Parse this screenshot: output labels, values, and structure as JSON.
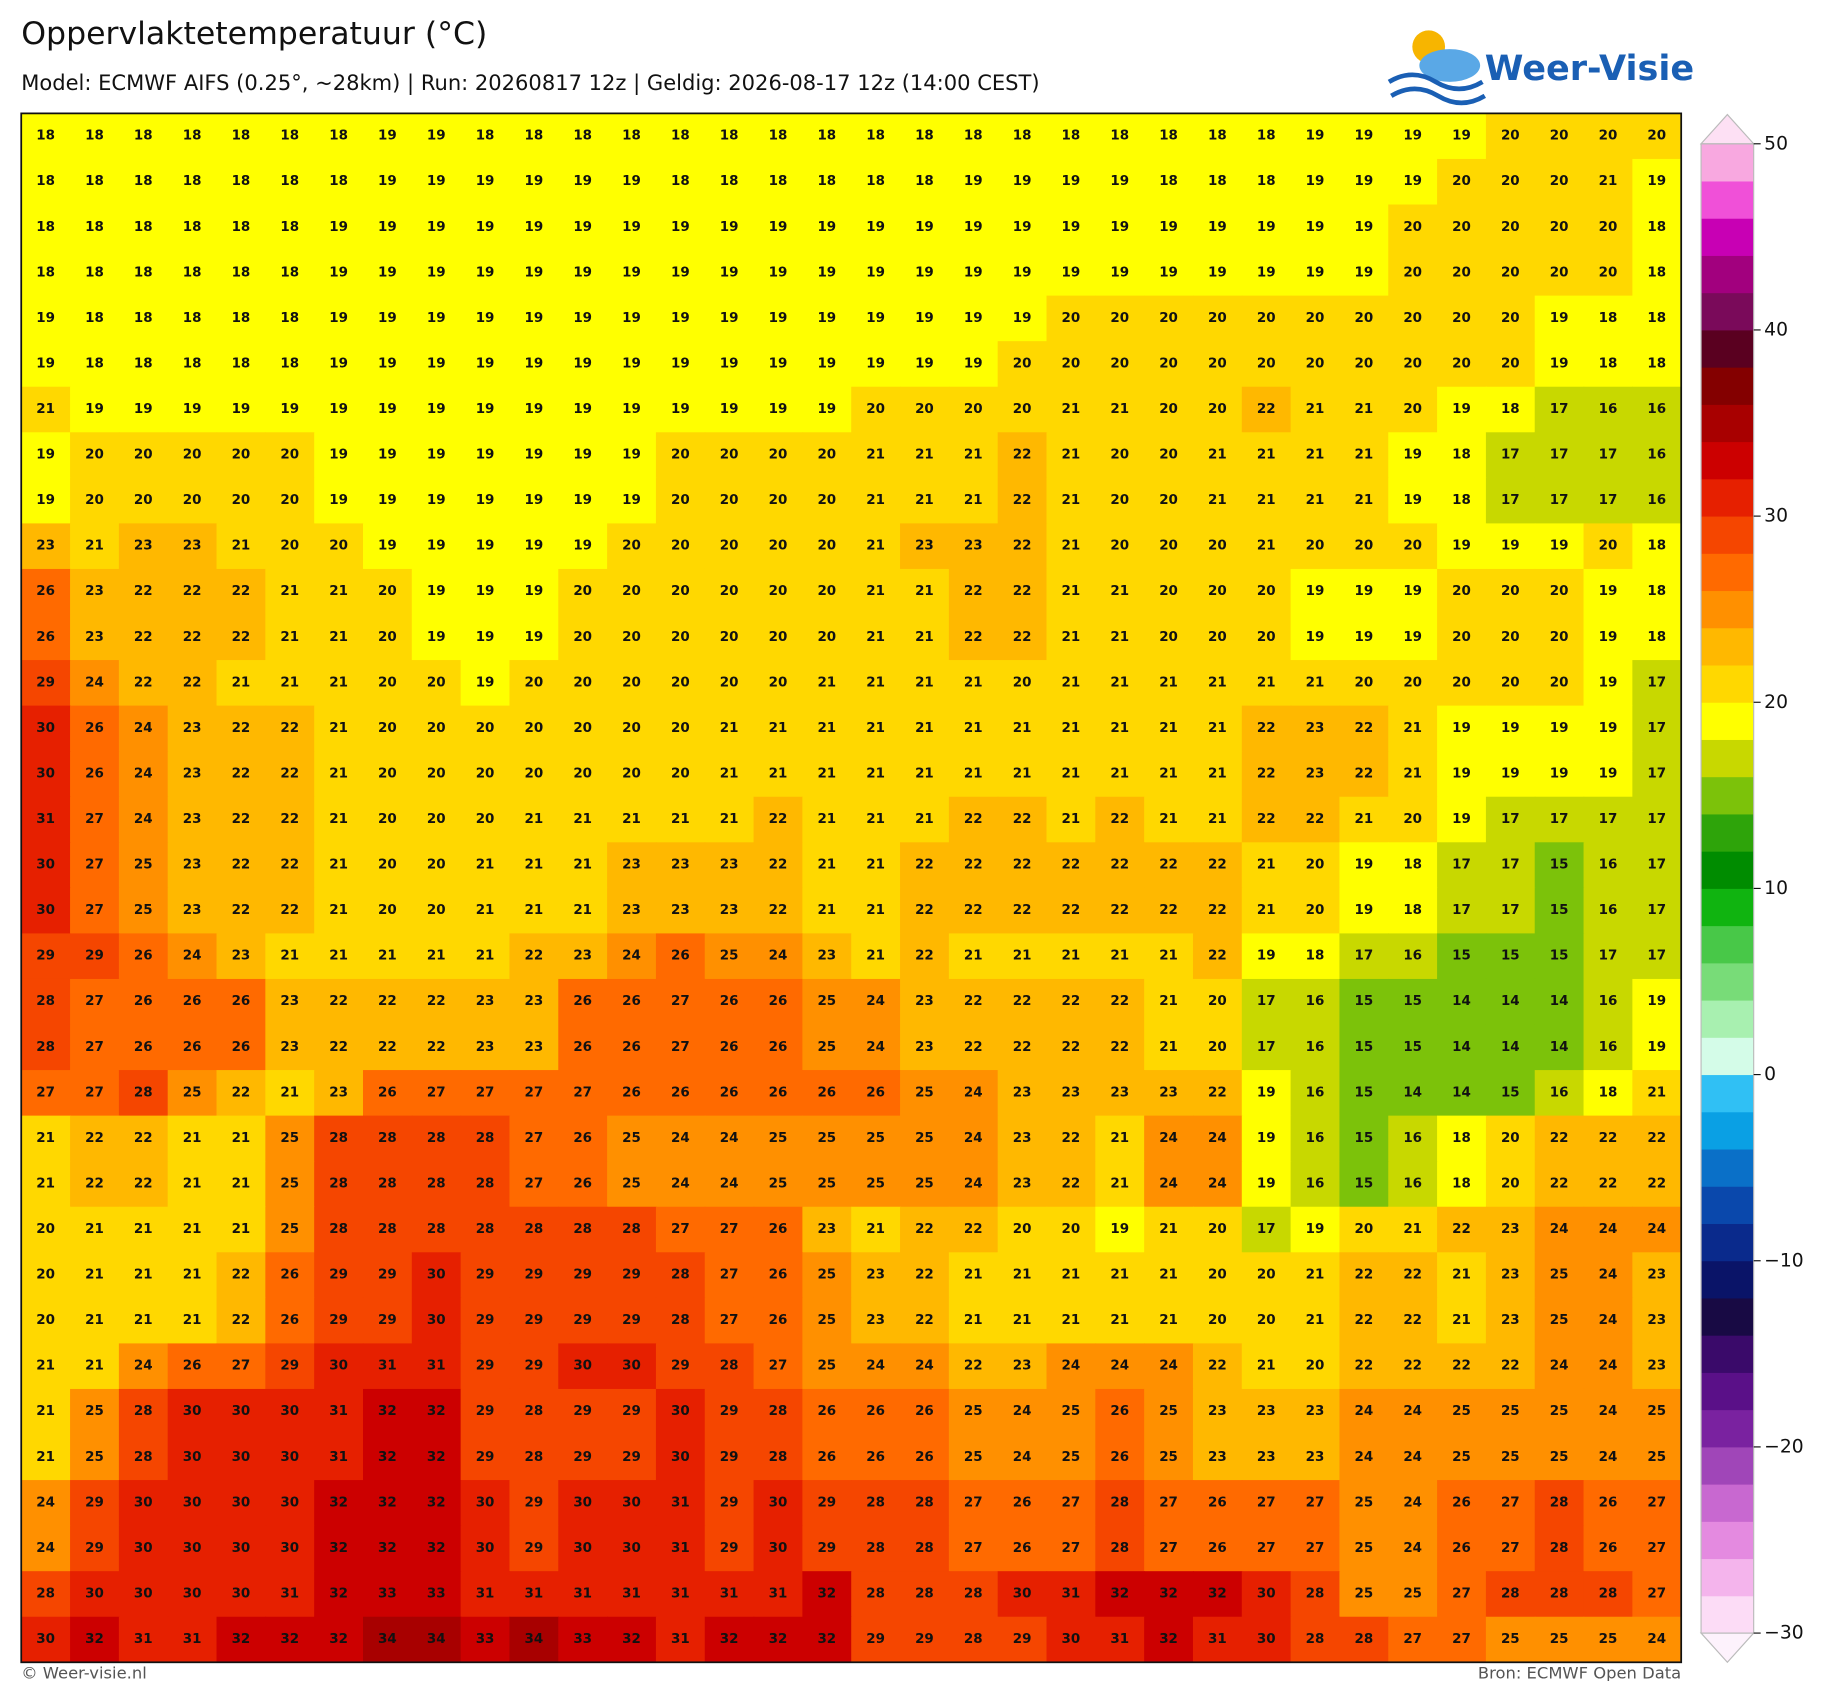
{
  "map": {
    "title": "Oppervlaktetemperatuur (°C)",
    "subtitle": "Model: ECMWF AIFS (0.25°, ~28km)  |  Run: 20260817 12z  |  Geldig: 2026-08-17 12z (14:00 CEST)",
    "logo": "Weer-Visie",
    "footer_left": "© Weer-visie.nl",
    "footer_right": "Bron: ECMWF Open Data",
    "grid": [
      [
        18,
        18,
        18,
        18,
        18,
        18,
        18,
        19,
        19,
        18,
        18,
        18,
        18,
        18,
        18,
        18,
        18,
        18,
        18,
        18,
        18,
        18,
        18,
        18,
        18,
        18,
        19,
        19,
        19,
        19,
        20,
        20,
        20,
        20
      ],
      [
        18,
        18,
        18,
        18,
        18,
        18,
        18,
        19,
        19,
        19,
        19,
        19,
        19,
        18,
        18,
        18,
        18,
        18,
        18,
        19,
        19,
        19,
        19,
        18,
        18,
        18,
        19,
        19,
        19,
        20,
        20,
        20,
        21,
        19
      ],
      [
        18,
        18,
        18,
        18,
        18,
        18,
        19,
        19,
        19,
        19,
        19,
        19,
        19,
        19,
        19,
        19,
        19,
        19,
        19,
        19,
        19,
        19,
        19,
        19,
        19,
        19,
        19,
        19,
        20,
        20,
        20,
        20,
        20,
        18
      ],
      [
        18,
        18,
        18,
        18,
        18,
        18,
        19,
        19,
        19,
        19,
        19,
        19,
        19,
        19,
        19,
        19,
        19,
        19,
        19,
        19,
        19,
        19,
        19,
        19,
        19,
        19,
        19,
        19,
        20,
        20,
        20,
        20,
        20,
        18
      ],
      [
        19,
        18,
        18,
        18,
        18,
        18,
        19,
        19,
        19,
        19,
        19,
        19,
        19,
        19,
        19,
        19,
        19,
        19,
        19,
        19,
        19,
        20,
        20,
        20,
        20,
        20,
        20,
        20,
        20,
        20,
        20,
        19,
        18,
        18
      ],
      [
        19,
        18,
        18,
        18,
        18,
        18,
        19,
        19,
        19,
        19,
        19,
        19,
        19,
        19,
        19,
        19,
        19,
        19,
        19,
        19,
        20,
        20,
        20,
        20,
        20,
        20,
        20,
        20,
        20,
        20,
        20,
        19,
        18,
        18
      ],
      [
        21,
        19,
        19,
        19,
        19,
        19,
        19,
        19,
        19,
        19,
        19,
        19,
        19,
        19,
        19,
        19,
        19,
        20,
        20,
        20,
        20,
        21,
        21,
        20,
        20,
        22,
        21,
        21,
        20,
        19,
        18,
        17,
        16,
        16
      ],
      [
        19,
        20,
        20,
        20,
        20,
        20,
        19,
        19,
        19,
        19,
        19,
        19,
        19,
        20,
        20,
        20,
        20,
        21,
        21,
        21,
        22,
        21,
        20,
        20,
        21,
        21,
        21,
        21,
        19,
        18,
        17,
        17,
        17,
        16
      ],
      [
        19,
        20,
        20,
        20,
        20,
        20,
        19,
        19,
        19,
        19,
        19,
        19,
        19,
        20,
        20,
        20,
        20,
        21,
        21,
        21,
        22,
        21,
        20,
        20,
        21,
        21,
        21,
        21,
        19,
        18,
        17,
        17,
        17,
        16
      ],
      [
        23,
        21,
        23,
        23,
        21,
        20,
        20,
        19,
        19,
        19,
        19,
        19,
        20,
        20,
        20,
        20,
        20,
        21,
        23,
        23,
        22,
        21,
        20,
        20,
        20,
        21,
        20,
        20,
        20,
        19,
        19,
        19,
        20,
        18
      ],
      [
        26,
        23,
        22,
        22,
        22,
        21,
        21,
        20,
        19,
        19,
        19,
        20,
        20,
        20,
        20,
        20,
        20,
        21,
        21,
        22,
        22,
        21,
        21,
        20,
        20,
        20,
        19,
        19,
        19,
        20,
        20,
        20,
        19,
        18
      ],
      [
        26,
        23,
        22,
        22,
        22,
        21,
        21,
        20,
        19,
        19,
        19,
        20,
        20,
        20,
        20,
        20,
        20,
        21,
        21,
        22,
        22,
        21,
        21,
        20,
        20,
        20,
        19,
        19,
        19,
        20,
        20,
        20,
        19,
        18
      ],
      [
        29,
        24,
        22,
        22,
        21,
        21,
        21,
        20,
        20,
        19,
        20,
        20,
        20,
        20,
        20,
        20,
        21,
        21,
        21,
        21,
        20,
        21,
        21,
        21,
        21,
        21,
        21,
        20,
        20,
        20,
        20,
        20,
        19,
        17
      ],
      [
        30,
        26,
        24,
        23,
        22,
        22,
        21,
        20,
        20,
        20,
        20,
        20,
        20,
        20,
        21,
        21,
        21,
        21,
        21,
        21,
        21,
        21,
        21,
        21,
        21,
        22,
        23,
        22,
        21,
        19,
        19,
        19,
        19,
        17
      ],
      [
        30,
        26,
        24,
        23,
        22,
        22,
        21,
        20,
        20,
        20,
        20,
        20,
        20,
        20,
        21,
        21,
        21,
        21,
        21,
        21,
        21,
        21,
        21,
        21,
        21,
        22,
        23,
        22,
        21,
        19,
        19,
        19,
        19,
        17
      ],
      [
        31,
        27,
        24,
        23,
        22,
        22,
        21,
        20,
        20,
        20,
        21,
        21,
        21,
        21,
        21,
        22,
        21,
        21,
        21,
        22,
        22,
        21,
        22,
        21,
        21,
        22,
        22,
        21,
        20,
        19,
        17,
        17,
        17,
        17
      ],
      [
        30,
        27,
        25,
        23,
        22,
        22,
        21,
        20,
        20,
        21,
        21,
        21,
        23,
        23,
        23,
        22,
        21,
        21,
        22,
        22,
        22,
        22,
        22,
        22,
        22,
        21,
        20,
        19,
        18,
        17,
        17,
        15,
        16,
        17
      ],
      [
        30,
        27,
        25,
        23,
        22,
        22,
        21,
        20,
        20,
        21,
        21,
        21,
        23,
        23,
        23,
        22,
        21,
        21,
        22,
        22,
        22,
        22,
        22,
        22,
        22,
        21,
        20,
        19,
        18,
        17,
        17,
        15,
        16,
        17
      ],
      [
        29,
        29,
        26,
        24,
        23,
        21,
        21,
        21,
        21,
        21,
        22,
        23,
        24,
        26,
        25,
        24,
        23,
        21,
        22,
        21,
        21,
        21,
        21,
        21,
        22,
        19,
        18,
        17,
        16,
        15,
        15,
        15,
        17,
        17
      ],
      [
        28,
        27,
        26,
        26,
        26,
        23,
        22,
        22,
        22,
        23,
        23,
        26,
        26,
        27,
        26,
        26,
        25,
        24,
        23,
        22,
        22,
        22,
        22,
        21,
        20,
        17,
        16,
        15,
        15,
        14,
        14,
        14,
        16,
        19
      ],
      [
        28,
        27,
        26,
        26,
        26,
        23,
        22,
        22,
        22,
        23,
        23,
        26,
        26,
        27,
        26,
        26,
        25,
        24,
        23,
        22,
        22,
        22,
        22,
        21,
        20,
        17,
        16,
        15,
        15,
        14,
        14,
        14,
        16,
        19
      ],
      [
        27,
        27,
        28,
        25,
        22,
        21,
        23,
        26,
        27,
        27,
        27,
        27,
        26,
        26,
        26,
        26,
        26,
        26,
        25,
        24,
        23,
        23,
        23,
        23,
        22,
        19,
        16,
        15,
        14,
        14,
        15,
        16,
        18,
        21
      ],
      [
        21,
        22,
        22,
        21,
        21,
        25,
        28,
        28,
        28,
        28,
        27,
        26,
        25,
        24,
        24,
        25,
        25,
        25,
        25,
        24,
        23,
        22,
        21,
        24,
        24,
        19,
        16,
        15,
        16,
        18,
        20,
        22,
        22,
        22
      ],
      [
        21,
        22,
        22,
        21,
        21,
        25,
        28,
        28,
        28,
        28,
        27,
        26,
        25,
        24,
        24,
        25,
        25,
        25,
        25,
        24,
        23,
        22,
        21,
        24,
        24,
        19,
        16,
        15,
        16,
        18,
        20,
        22,
        22,
        22
      ],
      [
        20,
        21,
        21,
        21,
        21,
        25,
        28,
        28,
        28,
        28,
        28,
        28,
        28,
        27,
        27,
        26,
        23,
        21,
        22,
        22,
        20,
        20,
        19,
        21,
        20,
        17,
        19,
        20,
        21,
        22,
        23,
        24,
        24,
        24
      ],
      [
        20,
        21,
        21,
        21,
        22,
        26,
        29,
        29,
        30,
        29,
        29,
        29,
        29,
        28,
        27,
        26,
        25,
        23,
        22,
        21,
        21,
        21,
        21,
        21,
        20,
        20,
        21,
        22,
        22,
        21,
        23,
        25,
        24,
        23
      ],
      [
        20,
        21,
        21,
        21,
        22,
        26,
        29,
        29,
        30,
        29,
        29,
        29,
        29,
        28,
        27,
        26,
        25,
        23,
        22,
        21,
        21,
        21,
        21,
        21,
        20,
        20,
        21,
        22,
        22,
        21,
        23,
        25,
        24,
        23
      ],
      [
        21,
        21,
        24,
        26,
        27,
        29,
        30,
        31,
        31,
        29,
        29,
        30,
        30,
        29,
        28,
        27,
        25,
        24,
        24,
        22,
        23,
        24,
        24,
        24,
        22,
        21,
        20,
        22,
        22,
        22,
        22,
        24,
        24,
        23
      ],
      [
        21,
        25,
        28,
        30,
        30,
        30,
        31,
        32,
        32,
        29,
        28,
        29,
        29,
        30,
        29,
        28,
        26,
        26,
        26,
        25,
        24,
        25,
        26,
        25,
        23,
        23,
        23,
        24,
        24,
        25,
        25,
        25,
        24,
        25
      ],
      [
        21,
        25,
        28,
        30,
        30,
        30,
        31,
        32,
        32,
        29,
        28,
        29,
        29,
        30,
        29,
        28,
        26,
        26,
        26,
        25,
        24,
        25,
        26,
        25,
        23,
        23,
        23,
        24,
        24,
        25,
        25,
        25,
        24,
        25
      ],
      [
        24,
        29,
        30,
        30,
        30,
        30,
        32,
        32,
        32,
        30,
        29,
        30,
        30,
        31,
        29,
        30,
        29,
        28,
        28,
        27,
        26,
        27,
        28,
        27,
        26,
        27,
        27,
        25,
        24,
        26,
        27,
        28,
        26,
        27
      ],
      [
        24,
        29,
        30,
        30,
        30,
        30,
        32,
        32,
        32,
        30,
        29,
        30,
        30,
        31,
        29,
        30,
        29,
        28,
        28,
        27,
        26,
        27,
        28,
        27,
        26,
        27,
        27,
        25,
        24,
        26,
        27,
        28,
        26,
        27
      ],
      [
        28,
        30,
        30,
        30,
        30,
        31,
        32,
        33,
        33,
        31,
        31,
        31,
        31,
        31,
        31,
        31,
        32,
        28,
        28,
        28,
        30,
        31,
        32,
        32,
        32,
        30,
        28,
        25,
        25,
        27,
        28,
        28,
        28,
        27
      ],
      [
        30,
        32,
        31,
        31,
        32,
        32,
        32,
        34,
        34,
        33,
        34,
        33,
        32,
        31,
        32,
        32,
        32,
        29,
        29,
        28,
        29,
        30,
        31,
        32,
        31,
        30,
        28,
        28,
        27,
        27,
        25,
        25,
        25,
        24
      ]
    ],
    "colorbar": {
      "clim": [
        -30,
        50
      ],
      "ticks": [
        50,
        40,
        30,
        20,
        10,
        0,
        {
          "value": -10,
          "label": "−10"
        },
        {
          "value": -20,
          "label": "−20"
        },
        {
          "value": -30,
          "label": "−30"
        }
      ],
      "colors": [
        "#fcdcf6",
        "#f4b4ec",
        "#e48ae0",
        "#c868d0",
        "#a046b8",
        "#7a22a0",
        "#5a1088",
        "#3a0a6a",
        "#180a44",
        "#0a1468",
        "#0a2a8c",
        "#0a48ac",
        "#0a70c8",
        "#0aa0e4",
        "#30c0f4",
        "#d4fce8",
        "#a8f0b0",
        "#78dc78",
        "#48c848",
        "#10b410",
        "#008c00",
        "#2ea40a",
        "#7cc20a",
        "#c8d800",
        "#ffff00",
        "#ffd800",
        "#ffb800",
        "#ff9000",
        "#ff6a00",
        "#f54600",
        "#e62000",
        "#cc0000",
        "#a80000",
        "#840000",
        "#5a0020",
        "#7a0a5a",
        "#a2007e",
        "#c800b4",
        "#f050d8",
        "#f8a8e0"
      ],
      "under_color": "#fdf2fc",
      "over_color": "#fde0f4"
    }
  }
}
